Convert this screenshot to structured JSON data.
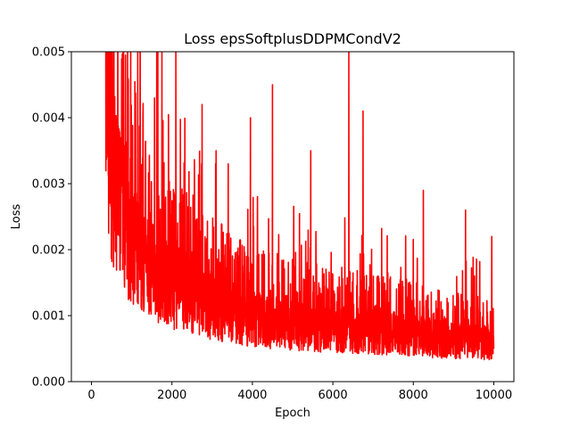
{
  "chart_data": {
    "type": "line",
    "title": "Loss epsSoftplusDDPMCondV2",
    "xlabel": "Epoch",
    "ylabel": "Loss",
    "xlim": [
      -500,
      10500
    ],
    "ylim": [
      0,
      0.005
    ],
    "x_ticks": [
      0,
      2000,
      4000,
      6000,
      8000,
      10000
    ],
    "x_tick_labels": [
      "0",
      "2000",
      "4000",
      "6000",
      "8000",
      "10000"
    ],
    "y_ticks": [
      0.0,
      0.001,
      0.002,
      0.003,
      0.004,
      0.005
    ],
    "y_tick_labels": [
      "0.000",
      "0.001",
      "0.002",
      "0.003",
      "0.004",
      "0.005"
    ],
    "grid": false,
    "series": [
      {
        "color": "#ff0000",
        "x_start": 350,
        "x_end": 10000,
        "baseline": [
          [
            350,
            0.0046
          ],
          [
            500,
            0.0033
          ],
          [
            700,
            0.0026
          ],
          [
            1000,
            0.0021
          ],
          [
            1500,
            0.0017
          ],
          [
            2000,
            0.00145
          ],
          [
            3000,
            0.00115
          ],
          [
            4000,
            0.00095
          ],
          [
            5000,
            0.00085
          ],
          [
            6000,
            0.0008
          ],
          [
            7000,
            0.00075
          ],
          [
            8000,
            0.0007
          ],
          [
            9000,
            0.00062
          ],
          [
            10000,
            0.00058
          ]
        ],
        "spikes": [
          [
            400,
            0.005
          ],
          [
            560,
            0.005
          ],
          [
            800,
            0.005
          ],
          [
            900,
            0.005
          ],
          [
            1150,
            0.005
          ],
          [
            1650,
            0.005
          ],
          [
            1750,
            0.005
          ],
          [
            2100,
            0.005
          ],
          [
            2750,
            0.0042
          ],
          [
            3100,
            0.0035
          ],
          [
            3400,
            0.0033
          ],
          [
            3950,
            0.004
          ],
          [
            4500,
            0.0045
          ],
          [
            5450,
            0.0035
          ],
          [
            6400,
            0.005
          ],
          [
            6750,
            0.0041
          ],
          [
            8250,
            0.0029
          ],
          [
            9300,
            0.0026
          ],
          [
            9950,
            0.0022
          ]
        ],
        "final_value": 0.0005
      }
    ]
  }
}
